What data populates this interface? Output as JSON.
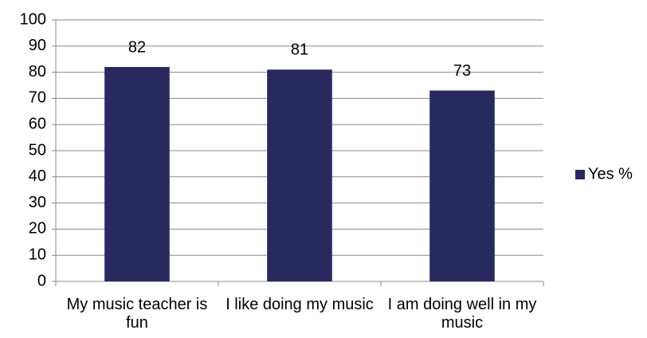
{
  "chart_data": {
    "type": "bar",
    "categories": [
      "My music teacher is fun",
      "I like doing my music",
      "I am doing well in my music"
    ],
    "series": [
      {
        "name": "Yes %",
        "color": "#28295f",
        "values": [
          82,
          81,
          73
        ]
      }
    ],
    "ylim": [
      0,
      100
    ],
    "yticks": [
      0,
      10,
      20,
      30,
      40,
      50,
      60,
      70,
      80,
      90,
      100
    ],
    "grid": true,
    "legend": "right"
  }
}
